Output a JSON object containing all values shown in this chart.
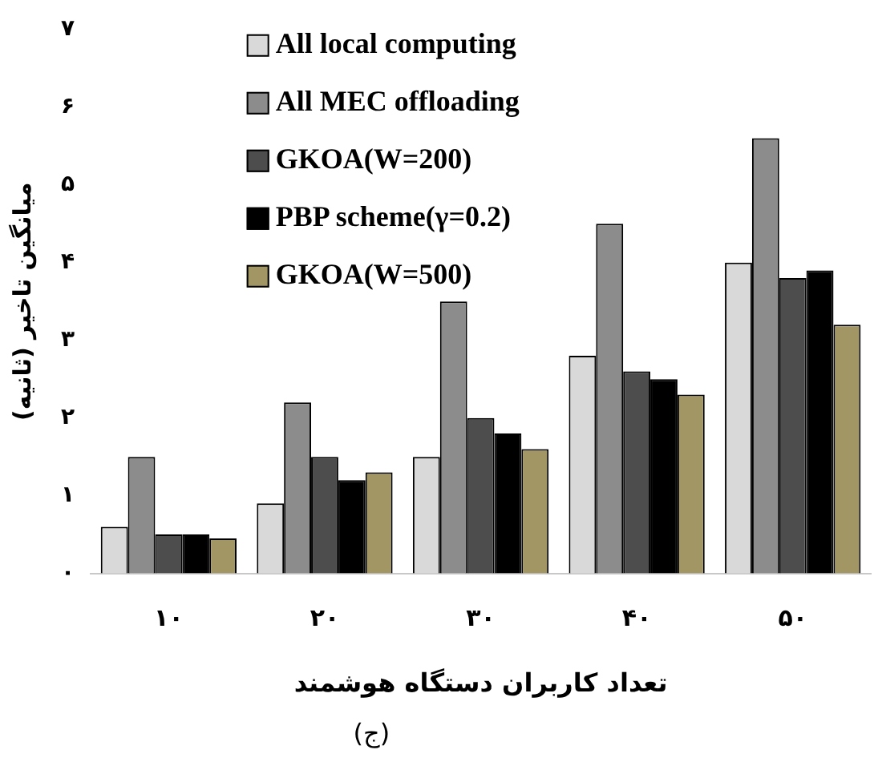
{
  "chart_data": {
    "type": "bar",
    "xlabel": "تعداد کاربران دستگاه هوشمند",
    "ylabel": "میانگین تاخیر (ثانیه)",
    "categories": [
      "۱۰",
      "۲۰",
      "۳۰",
      "۴۰",
      "۵۰"
    ],
    "series": [
      {
        "name": "All local computing",
        "color": "#d9d9d9",
        "values": [
          0.6,
          0.9,
          1.5,
          2.8,
          4.0
        ]
      },
      {
        "name": "All MEC offloading",
        "color": "#8c8c8c",
        "values": [
          1.5,
          2.2,
          3.5,
          4.5,
          5.6
        ]
      },
      {
        "name": "GKOA(W=200)",
        "color": "#4d4d4d",
        "values": [
          0.5,
          1.5,
          2.0,
          2.6,
          3.8
        ]
      },
      {
        "name": "PBP scheme(γ=0.2)",
        "color": "#000000",
        "values": [
          0.5,
          1.2,
          1.8,
          2.5,
          3.9
        ]
      },
      {
        "name": "GKOA(W=500)",
        "color": "#a39665",
        "values": [
          0.45,
          1.3,
          1.6,
          2.3,
          3.2
        ]
      }
    ],
    "ylim": [
      0,
      7
    ],
    "yticks": [
      {
        "value": 0,
        "label": "۰"
      },
      {
        "value": 1,
        "label": "۱"
      },
      {
        "value": 2,
        "label": "۲"
      },
      {
        "value": 3,
        "label": "۳"
      },
      {
        "value": 4,
        "label": "۴"
      },
      {
        "value": 5,
        "label": "۵"
      },
      {
        "value": 6,
        "label": "۶"
      },
      {
        "value": 7,
        "label": "۷"
      }
    ],
    "grid": false,
    "legend": "top left",
    "annotations": [
      "(ج)"
    ]
  }
}
